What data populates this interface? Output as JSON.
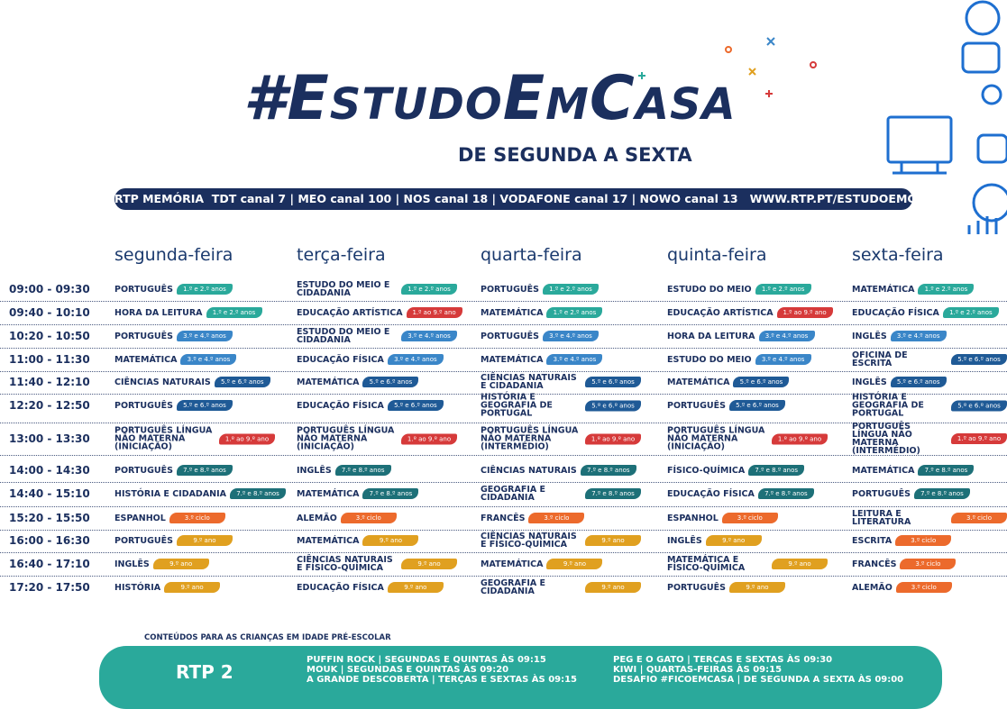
{
  "header": {
    "title": "#EstudoEmCasa",
    "subtitle": "DE SEGUNDA A SEXTA",
    "channels": "RTP MEMÓRIA  TDT canal 7 | MEO canal 100 | NOS canal 18 | VODAFONE canal 17 | NOWO canal 13   WWW.RTP.PT/ESTUDOEMCASA"
  },
  "schedule": {
    "days": [
      "segunda-feira",
      "terça-feira",
      "quarta-feira",
      "quinta-feira",
      "sexta-feira"
    ],
    "rows": [
      {
        "time": "09:00 - 09:30",
        "cells": [
          {
            "subject": "PORTUGUÊS",
            "badge": "1.º e 2.º anos",
            "color": "#2aa99b"
          },
          {
            "subject": "ESTUDO DO MEIO E CIDADANIA",
            "badge": "1.º e 2.º anos",
            "color": "#2aa99b"
          },
          {
            "subject": "PORTUGUÊS",
            "badge": "1.º e 2.º anos",
            "color": "#2aa99b"
          },
          {
            "subject": "ESTUDO DO MEIO",
            "badge": "1.º e 2.º anos",
            "color": "#2aa99b"
          },
          {
            "subject": "MATEMÁTICA",
            "badge": "1.º e 2.º anos",
            "color": "#2aa99b"
          }
        ]
      },
      {
        "time": "09:40 - 10:10",
        "cells": [
          {
            "subject": "HORA DA LEITURA",
            "badge": "1.º e 2.º anos",
            "color": "#2aa99b"
          },
          {
            "subject": "EDUCAÇÃO ARTÍSTICA",
            "badge": "1.º ao 9.º ano",
            "color": "#d63a3a"
          },
          {
            "subject": "MATEMÁTICA",
            "badge": "1.º e 2.º anos",
            "color": "#2aa99b"
          },
          {
            "subject": "EDUCAÇÃO ARTÍSTICA",
            "badge": "1.º ao 9.º ano",
            "color": "#d63a3a"
          },
          {
            "subject": "EDUCAÇÃO FÍSICA",
            "badge": "1.º e 2.º anos",
            "color": "#2aa99b"
          }
        ]
      },
      {
        "time": "10:20 - 10:50",
        "cells": [
          {
            "subject": "PORTUGUÊS",
            "badge": "3.º e 4.º anos",
            "color": "#3a86c8"
          },
          {
            "subject": "ESTUDO DO MEIO E CIDADANIA",
            "badge": "3.º e 4.º anos",
            "color": "#3a86c8"
          },
          {
            "subject": "PORTUGUÊS",
            "badge": "3.º e 4.º anos",
            "color": "#3a86c8"
          },
          {
            "subject": "HORA DA LEITURA",
            "badge": "3.º e 4.º anos",
            "color": "#3a86c8"
          },
          {
            "subject": "INGLÊS",
            "badge": "3.º e 4.º anos",
            "color": "#3a86c8"
          }
        ]
      },
      {
        "time": "11:00 - 11:30",
        "cells": [
          {
            "subject": "MATEMÁTICA",
            "badge": "3.º e 4.º anos",
            "color": "#3a86c8"
          },
          {
            "subject": "EDUCAÇÃO FÍSICA",
            "badge": "3.º e 4.º anos",
            "color": "#3a86c8"
          },
          {
            "subject": "MATEMÁTICA",
            "badge": "3.º e 4.º anos",
            "color": "#3a86c8"
          },
          {
            "subject": "ESTUDO DO MEIO",
            "badge": "3.º e 4.º anos",
            "color": "#3a86c8"
          },
          {
            "subject": "OFICINA DE ESCRITA",
            "badge": "5.º e 6.º anos",
            "color": "#1f5a96"
          }
        ]
      },
      {
        "time": "11:40 - 12:10",
        "cells": [
          {
            "subject": "CIÊNCIAS NATURAIS",
            "badge": "5.º e 6.º anos",
            "color": "#1f5a96"
          },
          {
            "subject": "MATEMÁTICA",
            "badge": "5.º e 6.º anos",
            "color": "#1f5a96"
          },
          {
            "subject": "CIÊNCIAS NATURAIS E CIDADANIA",
            "badge": "5.º e 6.º anos",
            "color": "#1f5a96"
          },
          {
            "subject": "MATEMÁTICA",
            "badge": "5.º e 6.º anos",
            "color": "#1f5a96"
          },
          {
            "subject": "INGLÊS",
            "badge": "5.º e 6.º anos",
            "color": "#1f5a96"
          }
        ]
      },
      {
        "time": "12:20 - 12:50",
        "cells": [
          {
            "subject": "PORTUGUÊS",
            "badge": "5.º e 6.º anos",
            "color": "#1f5a96"
          },
          {
            "subject": "EDUCAÇÃO FÍSICA",
            "badge": "5.º e 6.º anos",
            "color": "#1f5a96"
          },
          {
            "subject": "HISTÓRIA E GEOGRAFIA DE PORTUGAL",
            "badge": "5.º e 6.º anos",
            "color": "#1f5a96"
          },
          {
            "subject": "PORTUGUÊS",
            "badge": "5.º e 6.º anos",
            "color": "#1f5a96"
          },
          {
            "subject": "HISTÓRIA E GEOGRAFIA DE PORTUGAL",
            "badge": "5.º e 6.º anos",
            "color": "#1f5a96"
          }
        ]
      },
      {
        "time": "13:00 - 13:30",
        "cells": [
          {
            "subject": "PORTUGUÊS LÍNGUA NÃO MATERNA (INICIAÇÃO)",
            "badge": "1.º ao 9.º ano",
            "color": "#d63a3a"
          },
          {
            "subject": "PORTUGUÊS LÍNGUA NÃO MATERNA (INICIAÇÃO)",
            "badge": "1.º ao 9.º ano",
            "color": "#d63a3a"
          },
          {
            "subject": "PORTUGUÊS LÍNGUA NÃO MATERNA (INTERMÉDIO)",
            "badge": "1.º ao 9.º ano",
            "color": "#d63a3a"
          },
          {
            "subject": "PORTUGUÊS LÍNGUA NÃO MATERNA (INICIAÇÃO)",
            "badge": "1.º ao 9.º ano",
            "color": "#d63a3a"
          },
          {
            "subject": "PORTUGUÊS LÍNGUA NÃO MATERNA (INTERMÉDIO)",
            "badge": "1.º ao 9.º ano",
            "color": "#d63a3a"
          }
        ]
      },
      {
        "time": "14:00 - 14:30",
        "cells": [
          {
            "subject": "PORTUGUÊS",
            "badge": "7.º e 8.º anos",
            "color": "#1d7078"
          },
          {
            "subject": "INGLÊS",
            "badge": "7.º e 8.º anos",
            "color": "#1d7078"
          },
          {
            "subject": "CIÊNCIAS NATURAIS",
            "badge": "7.º e 8.º anos",
            "color": "#1d7078"
          },
          {
            "subject": "FÍSICO-QUÍMICA",
            "badge": "7.º e 8.º anos",
            "color": "#1d7078"
          },
          {
            "subject": "MATEMÁTICA",
            "badge": "7.º e 8.º anos",
            "color": "#1d7078"
          }
        ]
      },
      {
        "time": "14:40 - 15:10",
        "cells": [
          {
            "subject": "HISTÓRIA E CIDADANIA",
            "badge": "7.º e 8.º anos",
            "color": "#1d7078"
          },
          {
            "subject": "MATEMÁTICA",
            "badge": "7.º e 8.º anos",
            "color": "#1d7078"
          },
          {
            "subject": "GEOGRAFIA E CIDADANIA",
            "badge": "7.º e 8.º anos",
            "color": "#1d7078"
          },
          {
            "subject": "EDUCAÇÃO FÍSICA",
            "badge": "7.º e 8.º anos",
            "color": "#1d7078"
          },
          {
            "subject": "PORTUGUÊS",
            "badge": "7.º e 8.º anos",
            "color": "#1d7078"
          }
        ]
      },
      {
        "time": "15:20 - 15:50",
        "cells": [
          {
            "subject": "ESPANHOL",
            "badge": "3.º ciclo",
            "color": "#ec6a2c"
          },
          {
            "subject": "ALEMÃO",
            "badge": "3.º ciclo",
            "color": "#ec6a2c"
          },
          {
            "subject": "FRANCÊS",
            "badge": "3.º ciclo",
            "color": "#ec6a2c"
          },
          {
            "subject": "ESPANHOL",
            "badge": "3.º ciclo",
            "color": "#ec6a2c"
          },
          {
            "subject": "LEITURA E LITERATURA",
            "badge": "3.º ciclo",
            "color": "#ec6a2c"
          }
        ]
      },
      {
        "time": "16:00 - 16:30",
        "cells": [
          {
            "subject": "PORTUGUÊS",
            "badge": "9.º ano",
            "color": "#e0a020"
          },
          {
            "subject": "MATEMÁTICA",
            "badge": "9.º ano",
            "color": "#e0a020"
          },
          {
            "subject": "CIÊNCIAS NATURAIS E FÍSICO-QUÍMICA",
            "badge": "9.º ano",
            "color": "#e0a020"
          },
          {
            "subject": "INGLÊS",
            "badge": "9.º ano",
            "color": "#e0a020"
          },
          {
            "subject": "ESCRITA",
            "badge": "3.º ciclo",
            "color": "#ec6a2c"
          }
        ]
      },
      {
        "time": "16:40 - 17:10",
        "cells": [
          {
            "subject": "INGLÊS",
            "badge": "9.º ano",
            "color": "#e0a020"
          },
          {
            "subject": "CIÊNCIAS NATURAIS E FÍSICO-QUÍMICA",
            "badge": "9.º ano",
            "color": "#e0a020"
          },
          {
            "subject": "MATEMÁTICA",
            "badge": "9.º ano",
            "color": "#e0a020"
          },
          {
            "subject": "MATEMÁTICA E FÍSICO-QUÍMICA",
            "badge": "9.º ano",
            "color": "#e0a020"
          },
          {
            "subject": "FRANCÊS",
            "badge": "3.º ciclo",
            "color": "#ec6a2c"
          }
        ]
      },
      {
        "time": "17:20 - 17:50",
        "cells": [
          {
            "subject": "HISTÓRIA",
            "badge": "9.º ano",
            "color": "#e0a020"
          },
          {
            "subject": "EDUCAÇÃO FÍSICA",
            "badge": "9.º ano",
            "color": "#e0a020"
          },
          {
            "subject": "GEOGRAFIA E CIDADANIA",
            "badge": "9.º ano",
            "color": "#e0a020"
          },
          {
            "subject": "PORTUGUÊS",
            "badge": "9.º ano",
            "color": "#e0a020"
          },
          {
            "subject": "ALEMÃO",
            "badge": "3.º ciclo",
            "color": "#ec6a2c"
          }
        ]
      }
    ]
  },
  "footer": {
    "heading": "CONTEÚDOS PARA AS CRIANÇAS EM IDADE PRÉ-ESCOLAR",
    "logo": "RTP 2",
    "left": [
      "PUFFIN ROCK | SEGUNDAS E QUINTAS ÀS 09:15",
      "MOUK | SEGUNDAS E QUINTAS ÀS 09:20",
      "A GRANDE DESCOBERTA | TERÇAS E SEXTAS ÀS 09:15"
    ],
    "right": [
      "PEG E O GATO | TERÇAS E SEXTAS ÀS 09:30",
      "KIWI | QUARTAS-FEIRAS ÀS 09:15",
      "DESAFIO #FICOEMCASA | DE SEGUNDA A SEXTA ÀS 09:00"
    ]
  }
}
